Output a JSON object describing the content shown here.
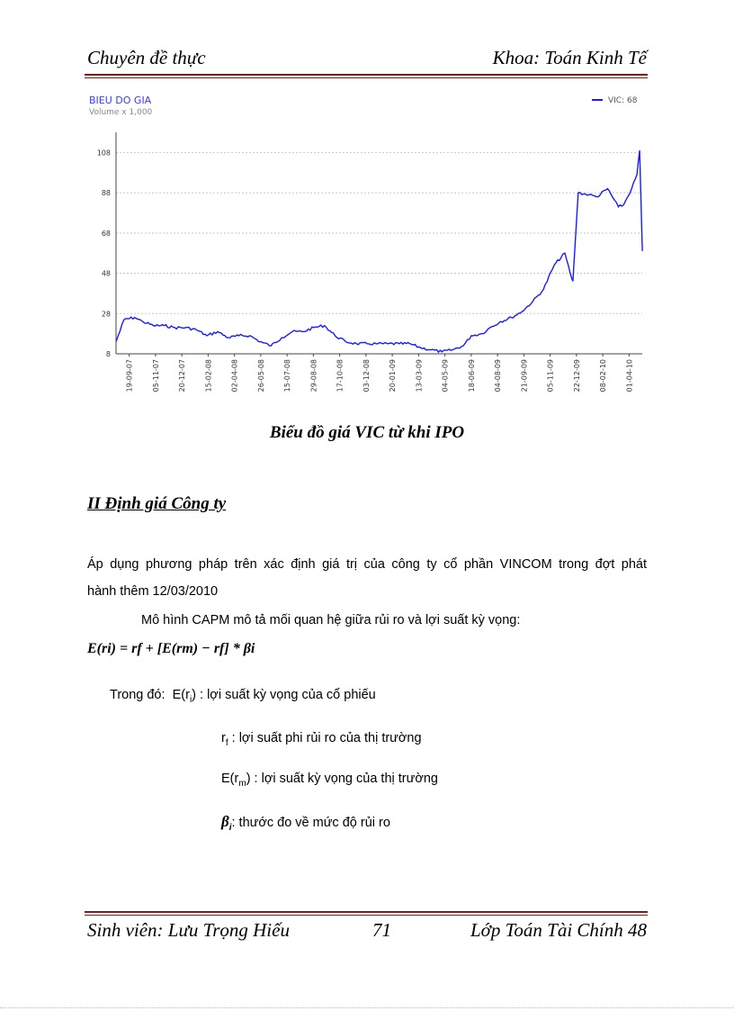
{
  "header": {
    "left": "Chuyên đề thực",
    "right": "Khoa: Toán Kinh Tế"
  },
  "chart_data": {
    "type": "line",
    "title": "BIEU DO GIA",
    "subtitle": "Volume x 1,000",
    "legend": "VIC: 68",
    "legend_position": "top-right",
    "ylim": [
      8,
      118
    ],
    "yticks": [
      8,
      28,
      48,
      68,
      88,
      108
    ],
    "grid": true,
    "xticks": [
      "19-09-07",
      "05-11-07",
      "20-12-07",
      "15-02-08",
      "02-04-08",
      "26-05-08",
      "15-07-08",
      "29-08-08",
      "17-10-08",
      "03-12-08",
      "20-01-09",
      "13-03-09",
      "04-05-09",
      "18-06-09",
      "04-08-09",
      "21-09-09",
      "05-11-09",
      "22-12-09",
      "08-02-10",
      "01-04-10"
    ],
    "series": [
      {
        "name": "VIC",
        "color": "#1a1aff",
        "x": [
          0,
          0.3,
          0.7,
          1,
          1.4,
          1.8,
          2.2,
          2.6,
          3,
          3.4,
          3.8,
          4.2,
          4.6,
          5,
          5.4,
          5.8,
          6.2,
          6.6,
          7,
          7.4,
          7.8,
          8.2,
          8.6,
          9,
          9.4,
          9.8,
          10.2,
          10.6,
          11,
          11.4,
          11.8,
          12.2,
          12.6,
          13,
          13.3,
          13.7,
          14,
          14.4,
          14.8,
          15.2,
          15.6,
          16,
          16.4,
          16.8,
          17,
          17.1,
          17.3,
          17.7,
          18,
          18.4,
          18.8,
          19,
          19.3,
          19.5,
          19.6,
          19.7
        ],
        "values": [
          14,
          25,
          26,
          24,
          22,
          22,
          21,
          21,
          20,
          17,
          19,
          16,
          17,
          17,
          14,
          12,
          16,
          19,
          19,
          21,
          22,
          17,
          14,
          13,
          13,
          13,
          13,
          13,
          13,
          11,
          10,
          9,
          10,
          12,
          17,
          18,
          21,
          24,
          26,
          29,
          34,
          40,
          52,
          58,
          48,
          44,
          88,
          87,
          86,
          90,
          81,
          82,
          90,
          97,
          109,
          59
        ]
      }
    ]
  },
  "caption": "Biểu đồ giá VIC từ khi IPO",
  "section_title": "II Định giá Công ty",
  "para1_line1": "Áp dụng phương pháp trên xác định giá trị của công ty cổ phần VINCOM trong đợt phát",
  "para1_line2": "hành thêm 12/03/2010",
  "para2": "Mô hình CAPM mô tả mối quan hệ giữa rủi ro và lợi suất kỳ vọng:",
  "formula": "E(ri) = rf + [E(rm) − rf] * βi",
  "where_label": "Trong đó:",
  "def1_sym": "E(r",
  "def1_sub": "i",
  "def1_text": ") : lợi suất kỳ vọng của cổ phiếu",
  "def2_sym": "r",
  "def2_sub": "f",
  "def2_text": " : lợi suất phi rủi ro của thị trường",
  "def3_sym": "E(r",
  "def3_sub": "m",
  "def3_text": ") : lợi suất kỳ vọng của thị trường",
  "def4_sym": "β",
  "def4_sub": "i",
  "def4_text": ": thước đo về mức độ rủi ro",
  "footer": {
    "left": "Sinh viên: Lưu Trọng Hiếu",
    "page": "71",
    "right": "Lớp Toán Tài Chính 48"
  }
}
